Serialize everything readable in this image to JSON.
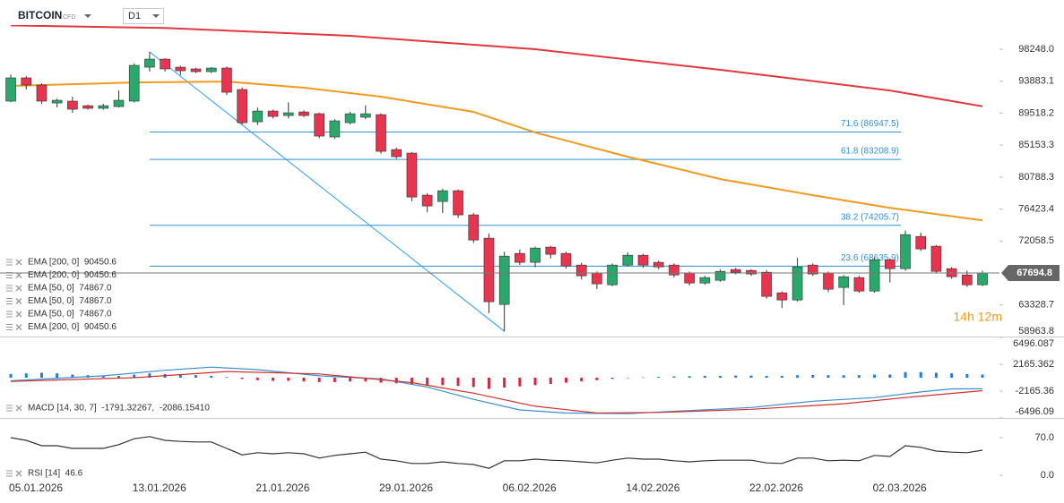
{
  "header": {
    "symbol": "BITCOIN",
    "tag": "CFD",
    "timeframe": "D1"
  },
  "chart_data": [
    {
      "type": "candlestick",
      "up_color": "#2aa86b",
      "down_color": "#e8344e",
      "xlim": [
        -0.7,
        64.1
      ],
      "ylim": [
        58900,
        101550
      ],
      "yticks": [
        {
          "value": 98248,
          "label": "98248.0"
        },
        93883.1,
        89518.2,
        85153.3,
        80788.3,
        76423.4,
        72058.5,
        63328.7,
        58963.8
      ],
      "open": [
        91160,
        94340,
        93360,
        90910,
        91160,
        90540,
        90180,
        90420,
        91160,
        95800,
        96900,
        95800,
        95560,
        95190,
        95680,
        92750,
        88340,
        89810,
        89200,
        89690,
        89440,
        86270,
        88220,
        88960,
        89320,
        84550,
        84060,
        78320,
        77460,
        78930,
        75630,
        72450,
        63400,
        70370,
        69150,
        71230,
        70370,
        68780,
        67680,
        66090,
        68780,
        70120,
        69150,
        68780,
        67680,
        66330,
        66700,
        68170,
        68050,
        67800,
        64990,
        64010,
        68780,
        67680,
        65720,
        67070,
        65230,
        69510,
        68290,
        72690,
        71350,
        68290,
        67430,
        66090
      ],
      "high": [
        94820,
        94580,
        93600,
        91500,
        91770,
        90700,
        90800,
        92620,
        96300,
        97880,
        97000,
        96000,
        95700,
        95800,
        95900,
        93000,
        90300,
        90000,
        91000,
        89900,
        89600,
        88700,
        89700,
        90600,
        89500,
        84800,
        84200,
        78600,
        79200,
        79100,
        75900,
        73100,
        70600,
        70900,
        71300,
        71400,
        70600,
        69100,
        67900,
        69000,
        70500,
        70300,
        69400,
        69000,
        67900,
        67300,
        68200,
        68400,
        68200,
        68100,
        65200,
        69800,
        69000,
        67900,
        67400,
        67300,
        69800,
        69700,
        73500,
        73200,
        71500,
        68500,
        68000,
        68000
      ],
      "low": [
        91030,
        92750,
        90800,
        90300,
        89570,
        90000,
        90000,
        90300,
        91000,
        95190,
        95200,
        94700,
        95000,
        95000,
        92000,
        88000,
        87900,
        88800,
        88800,
        89000,
        86100,
        86000,
        88000,
        88700,
        84000,
        83300,
        77500,
        76000,
        75900,
        75200,
        71800,
        62180,
        59730,
        68800,
        68500,
        69700,
        68300,
        66800,
        65500,
        65900,
        68600,
        68400,
        68200,
        67100,
        66000,
        66100,
        66500,
        67500,
        67300,
        64200,
        62900,
        63800,
        67300,
        65100,
        63300,
        65000,
        65000,
        66400,
        68000,
        70700,
        67700,
        66900,
        65800,
        65900
      ],
      "close": [
        94340,
        93360,
        91160,
        91280,
        90060,
        90180,
        90540,
        91280,
        96050,
        96900,
        95560,
        95310,
        95190,
        95680,
        92380,
        88220,
        89810,
        89080,
        89570,
        89200,
        86390,
        88470,
        89440,
        89440,
        84310,
        83580,
        78070,
        76850,
        78930,
        75630,
        72200,
        63770,
        70000,
        69150,
        71100,
        70250,
        68660,
        67310,
        66210,
        68780,
        70120,
        68780,
        68530,
        67430,
        66330,
        67070,
        67920,
        67800,
        67560,
        64500,
        64010,
        68530,
        67560,
        65480,
        67190,
        65230,
        69510,
        68290,
        72940,
        70980,
        67920,
        67190,
        66090,
        67694.8
      ],
      "lines": [
        {
          "color": "#e0383c",
          "x": [
            0,
            10,
            22,
            34,
            46,
            57,
            63
          ],
          "values": [
            101500,
            101150,
            100080,
            98250,
            95440,
            92620,
            90450.6
          ]
        },
        {
          "color": "#f39a1e",
          "x": [
            0,
            8,
            14,
            19,
            24,
            30,
            34,
            40,
            46,
            52,
            57,
            63
          ],
          "values": [
            93235,
            93720,
            93840,
            92990,
            91770,
            89690,
            86870,
            83570,
            80520,
            78320,
            76600,
            74867
          ]
        }
      ],
      "legend": [
        "EMA [200, 0]  90450.6",
        "EMA [200, 0]  90450.6",
        "EMA [50, 0]  74867.0",
        "EMA [50, 0]  74867.0",
        "EMA [50, 0]  74867.0",
        "EMA [200, 0]  90450.6"
      ],
      "fib_levels": [
        {
          "label": "71.6 (86947.5)",
          "value": 86947.5
        },
        {
          "label": "61.8 (83208.9)",
          "value": 83208.9
        },
        {
          "label": "38.2 (74205.7)",
          "value": 74205.7
        },
        {
          "label": "23.6 (68635.9)",
          "value": 68635.9
        }
      ],
      "fib_color": "#2f8fd8",
      "trendline": {
        "color": "#2a9df4",
        "x": [
          9,
          32
        ],
        "values": [
          97880,
          59730
        ]
      },
      "last_price": 67694.8,
      "countdown": "14h 12m"
    },
    {
      "type": "macd",
      "xlim": [
        -0.7,
        64.1
      ],
      "ylim": [
        -6496.09,
        6496.087
      ],
      "yticks": [
        6496.087,
        2165.362,
        -2165.36,
        -6496.09
      ],
      "legend": "MACD [14, 30, 7]  -1791.32267,  -2086.15410",
      "histogram": {
        "up_color": "#1f7ed6",
        "down_color": "#d7263d",
        "values": [
          600,
          700,
          800,
          700,
          500,
          400,
          300,
          300,
          500,
          700,
          600,
          500,
          400,
          300,
          100,
          -200,
          -400,
          -500,
          -500,
          -600,
          -700,
          -700,
          -600,
          -600,
          -800,
          -900,
          -1100,
          -1200,
          -1200,
          -1300,
          -1500,
          -1800,
          -1600,
          -1400,
          -1200,
          -1000,
          -800,
          -600,
          -400,
          -200,
          -50,
          50,
          150,
          200,
          250,
          300,
          300,
          350,
          350,
          300,
          300,
          400,
          450,
          400,
          400,
          400,
          500,
          500,
          900,
          900,
          800,
          700,
          600,
          500
        ]
      },
      "macd": {
        "color": "#3b8fd6",
        "x": [
          0,
          6,
          10,
          13,
          16,
          20,
          24,
          27,
          30,
          33,
          36,
          40,
          44,
          48,
          52,
          56,
          59,
          61,
          63
        ],
        "values": [
          -500,
          300,
          1200,
          1700,
          1300,
          300,
          -200,
          -1500,
          -3500,
          -5200,
          -5700,
          -5800,
          -5300,
          -4800,
          -3800,
          -3200,
          -2300,
          -1800,
          -1791.32267
        ]
      },
      "signal": {
        "color": "#d0312d",
        "x": [
          0,
          8,
          14,
          20,
          26,
          30,
          34,
          38,
          42,
          48,
          54,
          58,
          63
        ],
        "values": [
          -600,
          0,
          1000,
          600,
          -800,
          -2500,
          -4600,
          -5700,
          -5600,
          -5100,
          -4200,
          -3200,
          -2086.1541
        ]
      }
    },
    {
      "type": "rsi",
      "xlim": [
        -0.7,
        64.1
      ],
      "ylim": [
        -15,
        105
      ],
      "color": "#333333",
      "yticks": [
        {
          "value": 70,
          "label": "70.0"
        },
        {
          "value": 0,
          "label": "0.0"
        }
      ],
      "legend": "RSI [14]  46.6",
      "values": [
        70,
        65,
        55,
        55,
        50,
        50,
        50,
        57,
        68,
        72,
        65,
        63,
        62,
        62,
        50,
        38,
        42,
        40,
        42,
        40,
        32,
        37,
        40,
        43,
        30,
        27,
        22,
        22,
        25,
        22,
        20,
        13,
        27,
        27,
        30,
        28,
        27,
        25,
        23,
        28,
        32,
        30,
        30,
        27,
        25,
        27,
        28,
        28,
        28,
        23,
        22,
        32,
        32,
        27,
        28,
        27,
        37,
        35,
        55,
        52,
        45,
        43,
        42,
        46.6
      ],
      "xticks": [
        {
          "value": 0,
          "label": "05.01.2026"
        },
        {
          "value": 8,
          "label": "13.01.2026"
        },
        {
          "value": 16,
          "label": "21.01.2026"
        },
        {
          "value": 24,
          "label": "29.01.2026"
        },
        {
          "value": 32,
          "label": "06.02.2026"
        },
        {
          "value": 40,
          "label": "14.02.2026"
        },
        {
          "value": 48,
          "label": "22.02.2026"
        },
        {
          "value": 56,
          "label": "02.03.2026"
        }
      ]
    }
  ]
}
